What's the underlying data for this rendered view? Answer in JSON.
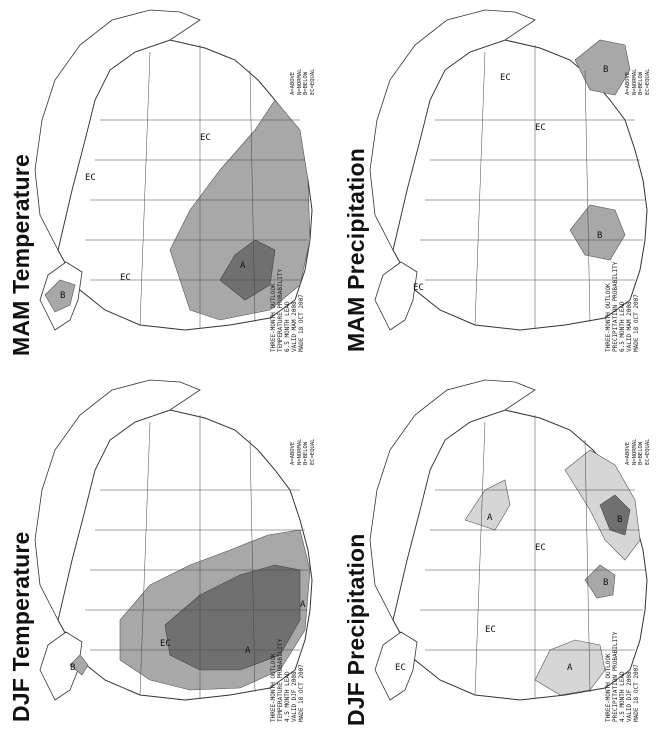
{
  "panels": [
    {
      "id": "djf-temp",
      "title": "DJF Temperature",
      "labels": [
        "EC",
        "A",
        "A",
        "B"
      ],
      "notes": [
        "THREE-MONTH OUTLOOK",
        "TEMPERATURE PROBABILITY",
        "4.5 MONTH LEAD",
        "VALID DJF 2008",
        "MADE 18 OCT 2007"
      ],
      "legend": [
        "A=ABOVE",
        "N=NORMAL",
        "B=BELOW",
        "EC=EQUAL"
      ]
    },
    {
      "id": "mam-temp",
      "title": "MAM Temperature",
      "labels": [
        "EC",
        "EC",
        "EC",
        "A",
        "B"
      ],
      "notes": [
        "THREE-MONTH OUTLOOK",
        "TEMPERATURE PROBABILITY",
        "6.5 MONTH LEAD",
        "VALID MAM 2008",
        "MADE 18 OCT 2007"
      ],
      "legend": [
        "A=ABOVE",
        "N=NORMAL",
        "B=BELOW",
        "EC=EQUAL"
      ]
    },
    {
      "id": "djf-precip",
      "title": "DJF Precipitation",
      "labels": [
        "EC",
        "EC",
        "A",
        "A",
        "B",
        "B",
        "EC"
      ],
      "notes": [
        "THREE-MONTH OUTLOOK",
        "PRECIPITATION PROBABILITY",
        "4.5 MONTH LEAD",
        "VALID DJF 2008",
        "MADE 18 OCT 2007"
      ],
      "legend": [
        "A=ABOVE",
        "N=NORMAL",
        "B=BELOW",
        "EC=EQUAL"
      ]
    },
    {
      "id": "mam-precip",
      "title": "MAM Precipitation",
      "labels": [
        "EC",
        "EC",
        "EC",
        "B",
        "B"
      ],
      "notes": [
        "THREE-MONTH OUTLOOK",
        "PRECIPITATION PROBABILITY",
        "6.5 MONTH LEAD",
        "VALID MAM 2008",
        "MADE 18 OCT 2007"
      ],
      "legend": [
        "A=ABOVE",
        "N=NORMAL",
        "B=BELOW",
        "EC=EQUAL"
      ]
    }
  ],
  "colors": {
    "shade_light": "#d6d6d6",
    "shade_mid": "#a8a8a8",
    "shade_dark": "#707070",
    "line": "#333333"
  }
}
